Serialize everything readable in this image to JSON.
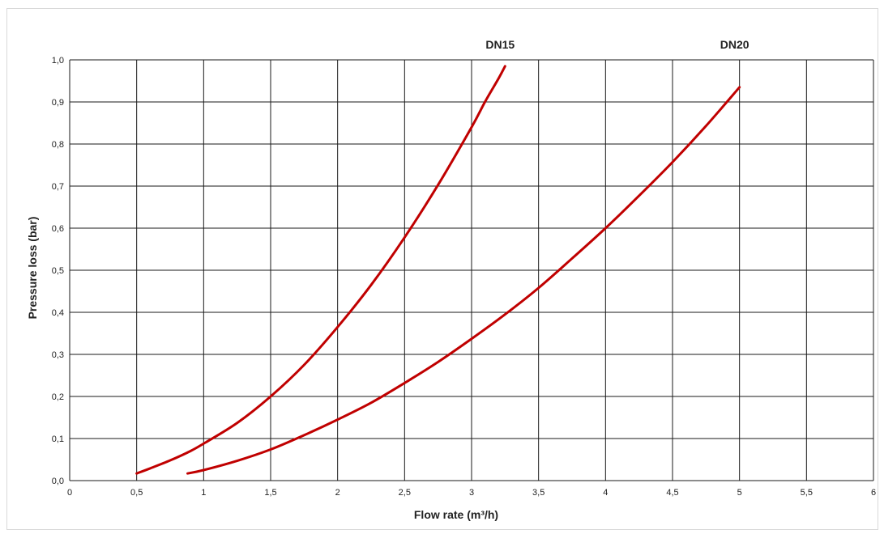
{
  "chart_data": {
    "type": "line",
    "xlabel": "Flow rate (m³/h)",
    "ylabel": "Pressure loss (bar)",
    "xlim": [
      0,
      6
    ],
    "ylim": [
      0,
      1.0
    ],
    "x_ticks": [
      "0",
      "0,5",
      "1",
      "1,5",
      "2",
      "2,5",
      "3",
      "3,5",
      "4",
      "4,5",
      "5",
      "5,5",
      "6"
    ],
    "y_ticks": [
      "0,0",
      "0,1",
      "0,2",
      "0,3",
      "0,4",
      "0,5",
      "0,6",
      "0,7",
      "0,8",
      "0,9",
      "1,0"
    ],
    "grid": true,
    "line_color": "#c00000",
    "series": [
      {
        "name": "DN15",
        "x": [
          0.5,
          0.6,
          0.75,
          0.9,
          1.0,
          1.25,
          1.5,
          1.75,
          2.0,
          2.25,
          2.5,
          2.75,
          3.0,
          3.1,
          3.2,
          3.25
        ],
        "y": [
          0.017,
          0.029,
          0.048,
          0.07,
          0.088,
          0.137,
          0.2,
          0.275,
          0.365,
          0.465,
          0.578,
          0.703,
          0.84,
          0.9,
          0.955,
          0.985
        ]
      },
      {
        "name": "DN20",
        "x": [
          0.88,
          1.0,
          1.25,
          1.5,
          1.75,
          2.0,
          2.25,
          2.5,
          2.75,
          3.0,
          3.25,
          3.5,
          3.75,
          4.0,
          4.25,
          4.5,
          4.75,
          5.0
        ],
        "y": [
          0.017,
          0.025,
          0.047,
          0.074,
          0.108,
          0.145,
          0.185,
          0.232,
          0.282,
          0.337,
          0.395,
          0.458,
          0.528,
          0.6,
          0.677,
          0.757,
          0.843,
          0.935
        ]
      }
    ]
  }
}
